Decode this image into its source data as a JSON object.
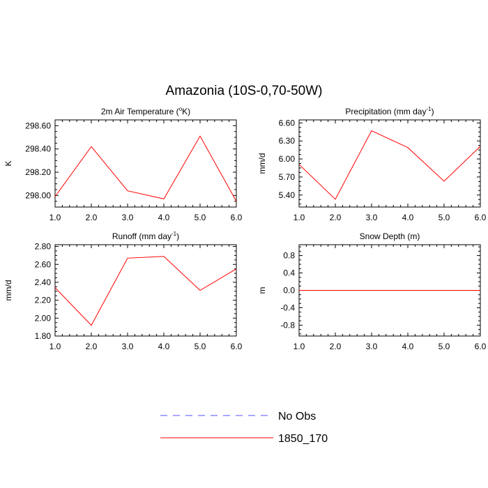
{
  "figure": {
    "title": "Amazonia (10S-0,70-50W)"
  },
  "legend": {
    "placement": "bottom-center",
    "entries": [
      {
        "label": "No Obs",
        "color": "#5050ff",
        "style": "dashed"
      },
      {
        "label": "1850_170",
        "color": "#ff0000",
        "style": "solid"
      }
    ]
  },
  "chart_data": [
    {
      "type": "line",
      "title_main": "2m Air Temperature (",
      "title_sup": "o",
      "title_end": "K)",
      "ylabel": "K",
      "xlim": [
        1.0,
        6.0
      ],
      "ylim": [
        297.9,
        298.65
      ],
      "xticks": [
        "1.0",
        "2.0",
        "3.0",
        "4.0",
        "5.0",
        "6.0"
      ],
      "yticks": [
        {
          "value": 298.0,
          "label": "298.00"
        },
        {
          "value": 298.2,
          "label": "298.20"
        },
        {
          "value": 298.4,
          "label": "298.40"
        },
        {
          "value": 298.6,
          "label": "298.60"
        }
      ],
      "series": [
        {
          "name": "1850_170",
          "color": "#ff0000",
          "x": [
            1,
            2,
            3,
            4,
            5,
            6
          ],
          "y": [
            297.99,
            298.42,
            298.04,
            297.97,
            298.51,
            297.95
          ]
        }
      ]
    },
    {
      "type": "line",
      "title_main": "Precipitation (mm day",
      "title_sup": "-1",
      "title_end": ")",
      "ylabel": "mm/d",
      "xlim": [
        1.0,
        6.0
      ],
      "ylim": [
        5.2,
        6.65
      ],
      "xticks": [
        "1.0",
        "2.0",
        "3.0",
        "4.0",
        "5.0",
        "6.0"
      ],
      "yticks": [
        {
          "value": 5.4,
          "label": "5.40"
        },
        {
          "value": 5.7,
          "label": "5.70"
        },
        {
          "value": 6.0,
          "label": "6.00"
        },
        {
          "value": 6.3,
          "label": "6.30"
        },
        {
          "value": 6.6,
          "label": "6.60"
        }
      ],
      "series": [
        {
          "name": "1850_170",
          "color": "#ff0000",
          "x": [
            1,
            2,
            3,
            4,
            5,
            6
          ],
          "y": [
            5.91,
            5.33,
            6.47,
            6.19,
            5.63,
            6.21
          ]
        }
      ]
    },
    {
      "type": "line",
      "title_main": "Runoff (mm day",
      "title_sup": "-1",
      "title_end": ")",
      "ylabel": "mm/d",
      "xlim": [
        1.0,
        6.0
      ],
      "ylim": [
        1.8,
        2.82
      ],
      "xticks": [
        "1.0",
        "2.0",
        "3.0",
        "4.0",
        "5.0",
        "6.0"
      ],
      "yticks": [
        {
          "value": 1.8,
          "label": "1.80"
        },
        {
          "value": 2.0,
          "label": "2.00"
        },
        {
          "value": 2.2,
          "label": "2.20"
        },
        {
          "value": 2.4,
          "label": "2.40"
        },
        {
          "value": 2.6,
          "label": "2.60"
        },
        {
          "value": 2.8,
          "label": "2.80"
        }
      ],
      "series": [
        {
          "name": "1850_170",
          "color": "#ff0000",
          "x": [
            1,
            2,
            3,
            4,
            5,
            6
          ],
          "y": [
            2.34,
            1.92,
            2.67,
            2.69,
            2.31,
            2.55
          ]
        }
      ]
    },
    {
      "type": "line",
      "title_main": "Snow Depth (m)",
      "title_sup": "",
      "title_end": "",
      "ylabel": "m",
      "xlim": [
        1.0,
        6.0
      ],
      "ylim": [
        -1.05,
        1.05
      ],
      "xticks": [
        "1.0",
        "2.0",
        "3.0",
        "4.0",
        "5.0",
        "6.0"
      ],
      "yticks": [
        {
          "value": -0.8,
          "label": "-0.8"
        },
        {
          "value": -0.4,
          "label": "-0.4"
        },
        {
          "value": 0.0,
          "label": "0.0"
        },
        {
          "value": 0.4,
          "label": "0.4"
        },
        {
          "value": 0.8,
          "label": "0.8"
        }
      ],
      "series": [
        {
          "name": "1850_170",
          "color": "#ff0000",
          "x": [
            1,
            2,
            3,
            4,
            5,
            6
          ],
          "y": [
            0,
            0,
            0,
            0,
            0,
            0
          ]
        }
      ]
    }
  ]
}
